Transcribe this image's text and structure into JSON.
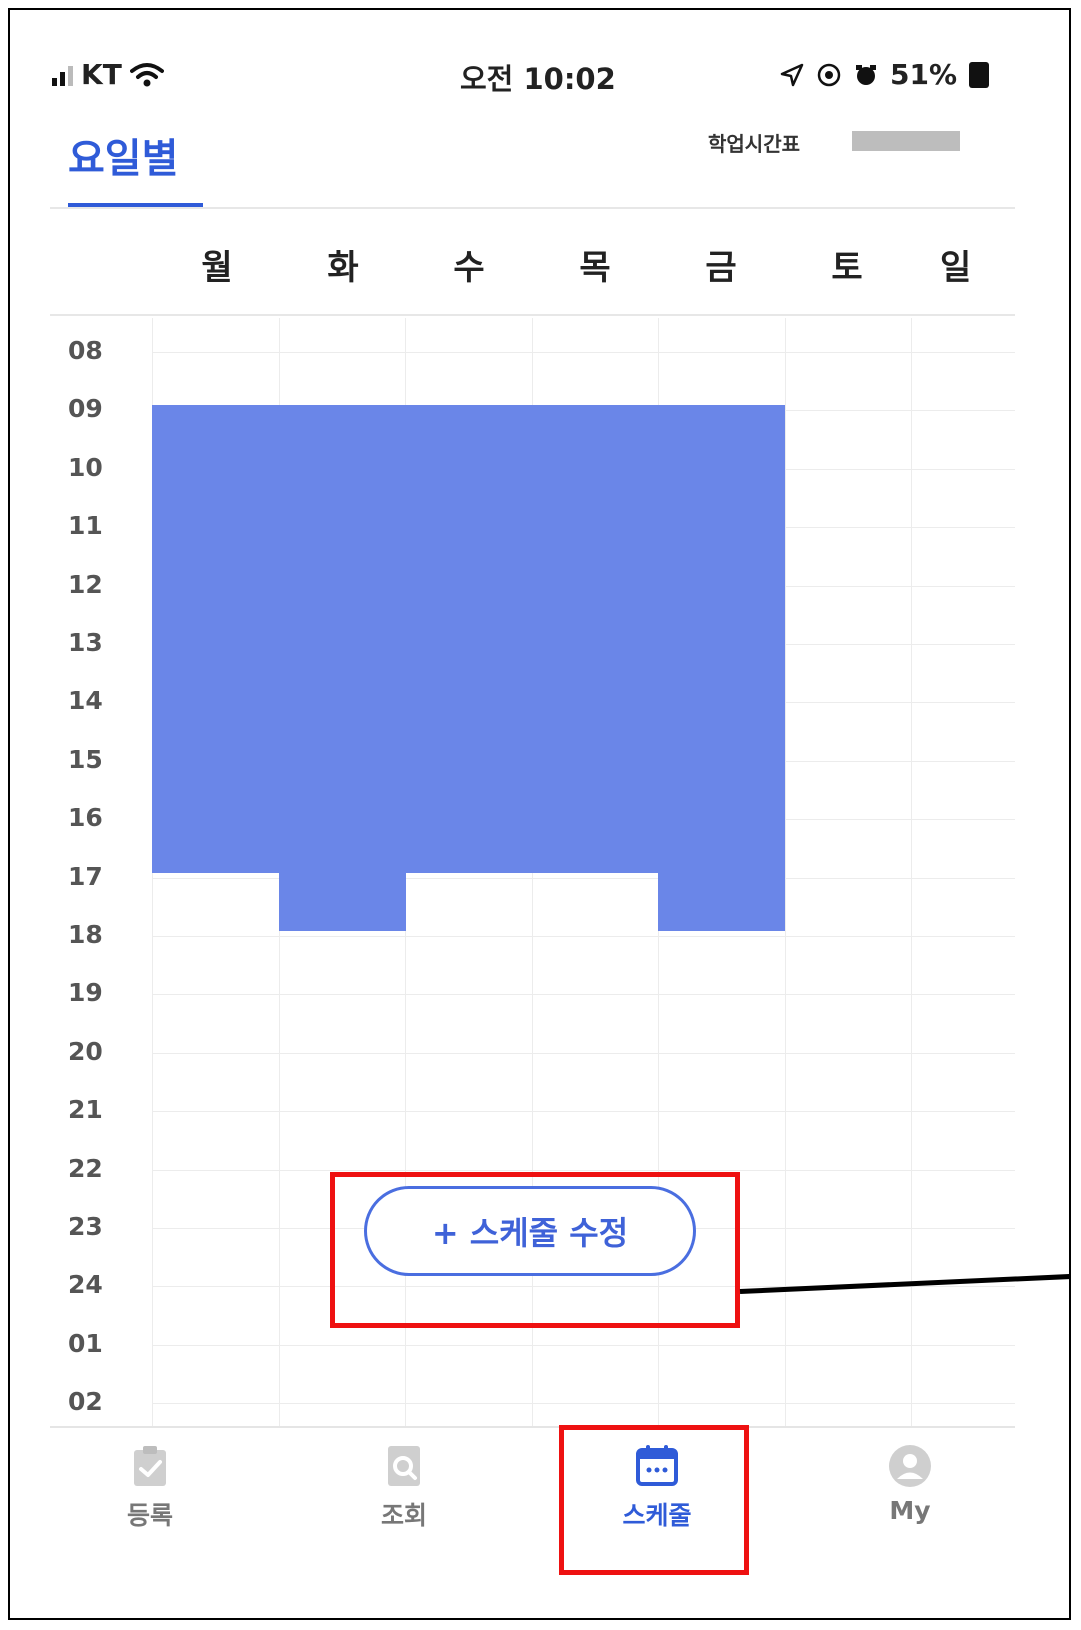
{
  "status_bar": {
    "carrier": "KT",
    "time": "오전 10:02",
    "battery": "51%"
  },
  "header": {
    "active_tab": "요일별",
    "right_label": "학업시간표"
  },
  "days": [
    "월",
    "화",
    "수",
    "목",
    "금",
    "토",
    "일"
  ],
  "hours": [
    "08",
    "09",
    "10",
    "11",
    "12",
    "13",
    "14",
    "15",
    "16",
    "17",
    "18",
    "19",
    "20",
    "21",
    "22",
    "23",
    "24",
    "01",
    "02"
  ],
  "schedule_color": "#6a86e8",
  "schedule": [
    {
      "day": "월",
      "start": "09",
      "end": "17"
    },
    {
      "day": "화",
      "start": "09",
      "end": "18"
    },
    {
      "day": "수",
      "start": "09",
      "end": "17"
    },
    {
      "day": "목",
      "start": "09",
      "end": "17"
    },
    {
      "day": "금",
      "start": "09",
      "end": "18"
    }
  ],
  "edit_button": {
    "label": "+ 스케줄 수정"
  },
  "bottom_nav": [
    {
      "label": "등록",
      "icon": "clipboard-check-icon"
    },
    {
      "label": "조회",
      "icon": "search-document-icon"
    },
    {
      "label": "스케줄",
      "icon": "calendar-icon",
      "active": true
    },
    {
      "label": "My",
      "icon": "user-icon"
    }
  ],
  "accent_color": "#2f5bd8",
  "annotation_color": "#ee1111"
}
